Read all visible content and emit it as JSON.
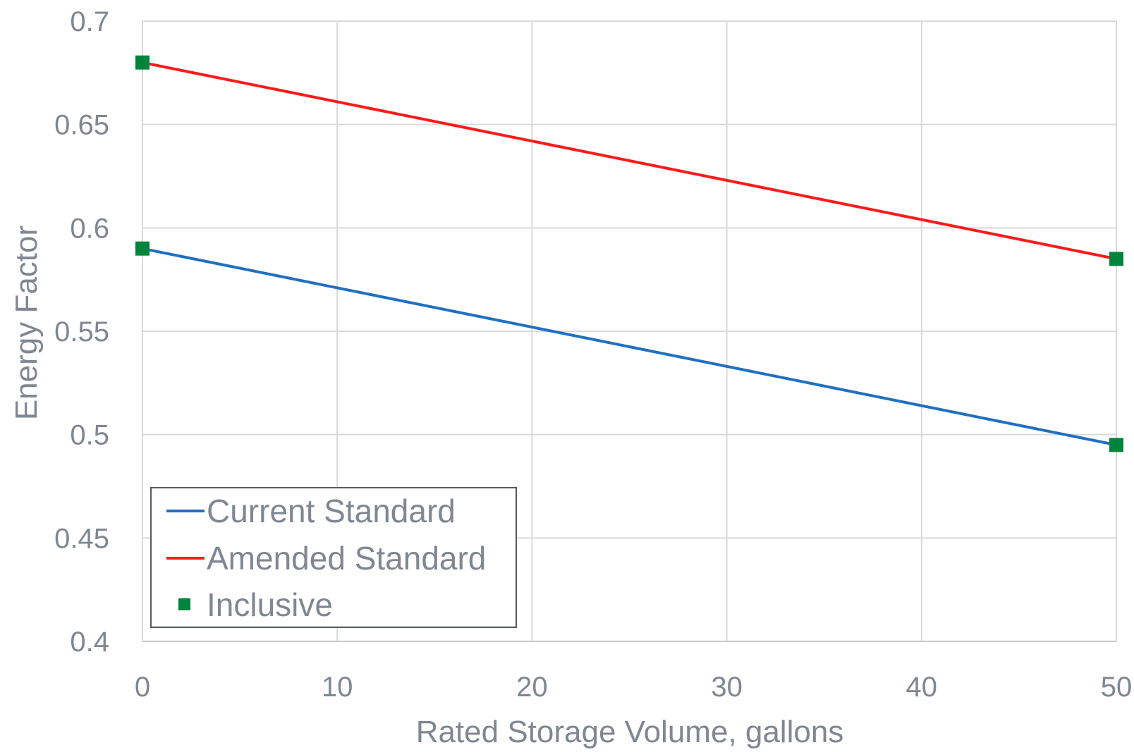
{
  "chart_data": {
    "type": "line",
    "xlabel": "Rated Storage Volume, gallons",
    "ylabel": "Energy Factor",
    "xlim": [
      0,
      50
    ],
    "ylim": [
      0.4,
      0.7
    ],
    "x_ticks": [
      "0",
      "10",
      "20",
      "30",
      "40",
      "50"
    ],
    "y_ticks": [
      "0.4",
      "0.45",
      "0.5",
      "0.55",
      "0.6",
      "0.65",
      "0.7"
    ],
    "grid": true,
    "legend_position": "bottom-left",
    "series": [
      {
        "name": "Current Standard",
        "kind": "line",
        "color": "#1f70c1",
        "x": [
          0,
          50
        ],
        "y": [
          0.59,
          0.495
        ]
      },
      {
        "name": "Amended Standard",
        "kind": "line",
        "color": "#ff1a1a",
        "x": [
          0,
          50
        ],
        "y": [
          0.68,
          0.585
        ]
      },
      {
        "name": "Inclusive",
        "kind": "marker",
        "marker": "square",
        "color": "#00843d",
        "x": [
          0,
          0,
          50,
          50
        ],
        "y": [
          0.68,
          0.59,
          0.585,
          0.495
        ]
      }
    ]
  }
}
